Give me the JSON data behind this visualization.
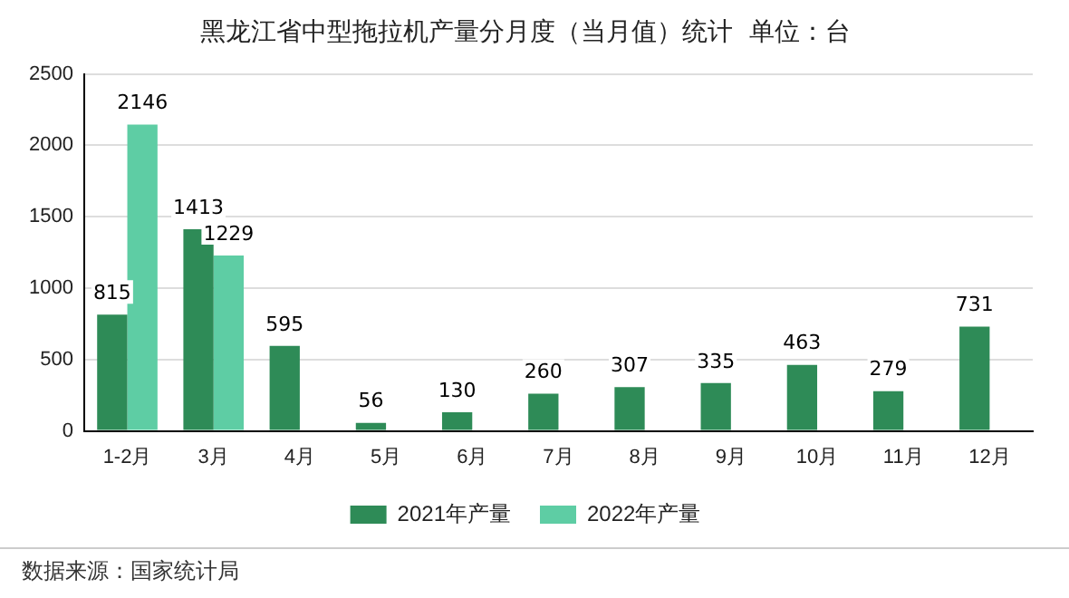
{
  "chart_data": {
    "type": "bar",
    "title": "黑龙江省中型拖拉机产量分月度（当月值）统计  单位：台",
    "categories": [
      "1-2月",
      "3月",
      "4月",
      "5月",
      "6月",
      "7月",
      "8月",
      "9月",
      "10月",
      "11月",
      "12月"
    ],
    "series": [
      {
        "name": "2021年产量",
        "color": "#2e8b57",
        "values": [
          815,
          1413,
          595,
          56,
          130,
          260,
          307,
          335,
          463,
          279,
          731
        ]
      },
      {
        "name": "2022年产量",
        "color": "#5ecda4",
        "values": [
          2146,
          1229,
          null,
          null,
          null,
          null,
          null,
          null,
          null,
          null,
          null
        ]
      }
    ],
    "ylim": [
      0,
      2500
    ],
    "yticks": [
      0,
      500,
      1000,
      1500,
      2000,
      2500
    ],
    "grid": "y",
    "legend": "bottom",
    "data_labels": true,
    "annotations": [
      "数据来源：国家统计局"
    ]
  }
}
